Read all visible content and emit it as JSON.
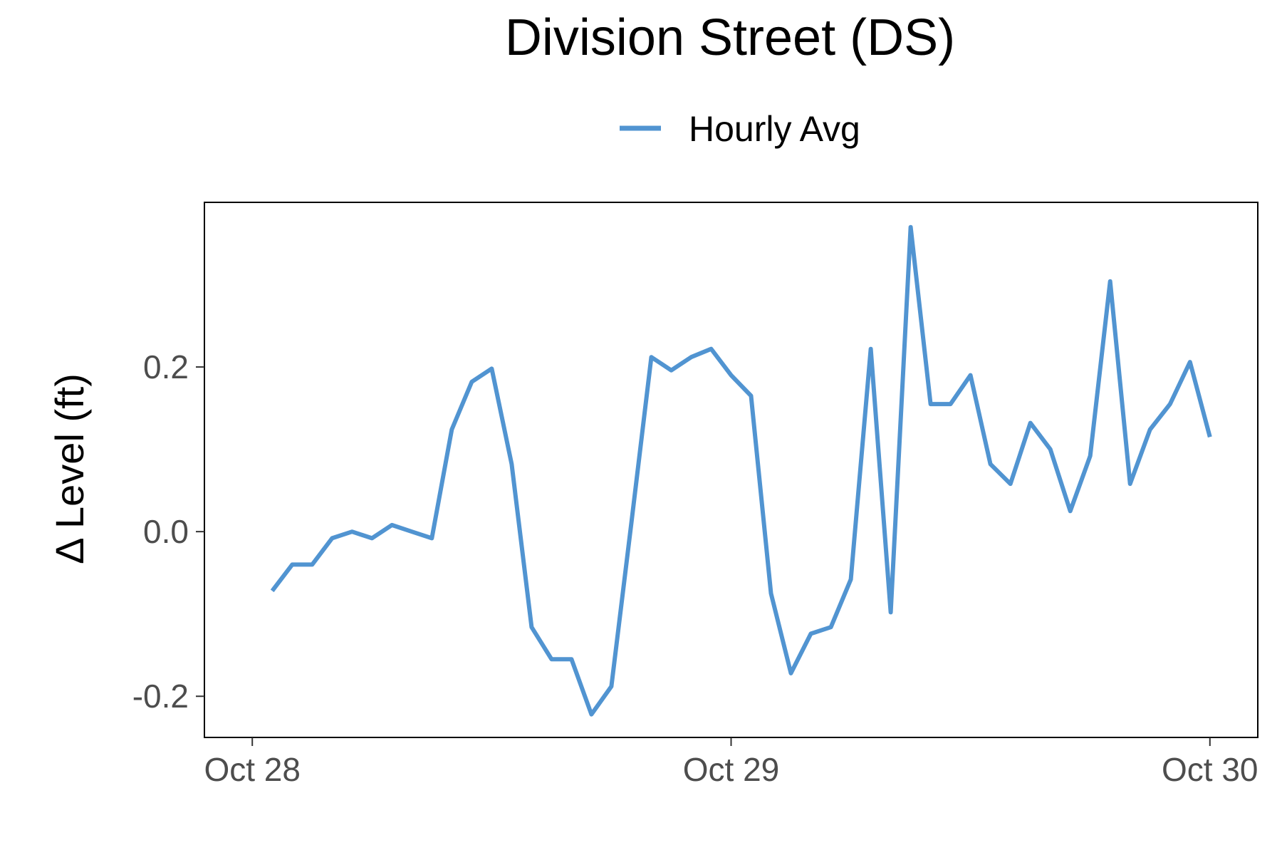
{
  "chart_data": {
    "type": "line",
    "title": "Division Street (DS)",
    "ylabel": "Δ Level (ft)",
    "xlabel": "",
    "legend": {
      "position": "top",
      "entries": [
        "Hourly Avg"
      ]
    },
    "grid": false,
    "x_ticks": [
      {
        "value": 0,
        "label": "Oct 28"
      },
      {
        "value": 24,
        "label": "Oct 29"
      },
      {
        "value": 48,
        "label": "Oct 30"
      }
    ],
    "y_ticks": [
      {
        "value": -0.2,
        "label": "-0.2"
      },
      {
        "value": 0.0,
        "label": "0.0"
      },
      {
        "value": 0.2,
        "label": "0.2"
      }
    ],
    "xlim": [
      -2.4,
      50.4
    ],
    "ylim": [
      -0.25,
      0.4
    ],
    "series": [
      {
        "name": "Hourly Avg",
        "color": "#5194d1",
        "x": [
          1,
          2,
          3,
          4,
          5,
          6,
          7,
          8,
          9,
          10,
          11,
          12,
          13,
          14,
          15,
          16,
          17,
          18,
          19,
          20,
          21,
          22,
          23,
          24,
          25,
          26,
          27,
          28,
          29,
          30,
          31,
          32,
          33,
          34,
          35,
          36,
          37,
          38,
          39,
          40,
          41,
          42,
          43,
          44,
          45,
          46,
          47,
          48
        ],
        "y": [
          -0.072,
          -0.04,
          -0.04,
          -0.008,
          0.0,
          -0.008,
          0.008,
          0.0,
          -0.008,
          0.124,
          0.182,
          0.198,
          0.082,
          -0.116,
          -0.155,
          -0.155,
          -0.222,
          -0.188,
          0.01,
          0.212,
          0.196,
          0.212,
          0.222,
          0.19,
          0.165,
          -0.075,
          -0.172,
          -0.124,
          -0.116,
          -0.058,
          0.222,
          -0.098,
          0.37,
          0.155,
          0.155,
          0.19,
          0.082,
          0.058,
          0.132,
          0.1,
          0.025,
          0.092,
          0.304,
          0.058,
          0.124,
          0.155,
          0.206,
          0.115
        ]
      }
    ]
  }
}
